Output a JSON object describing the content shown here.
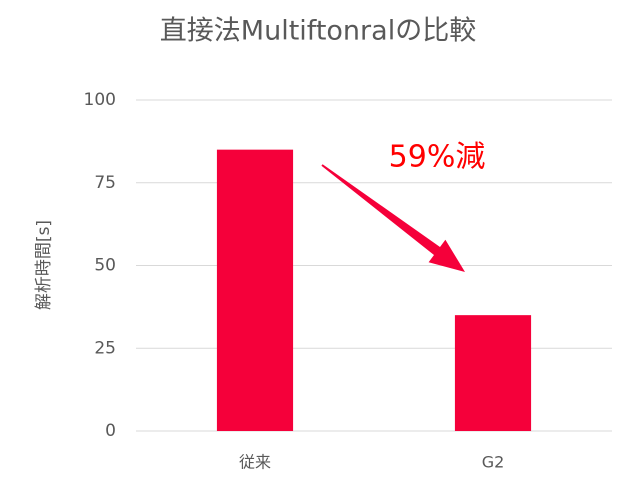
{
  "chart_data": {
    "type": "bar",
    "title": "直接法Multiftonralの比較",
    "y_label": "解析時間[s]",
    "categories": [
      "従来",
      "G2"
    ],
    "values": [
      85,
      35
    ],
    "color": "#f5003a",
    "ylim": [
      0,
      100
    ],
    "yticks": [
      0,
      25,
      50,
      75,
      100
    ],
    "grid": true,
    "annotation": "59%減",
    "annotation_color": "#ff0000"
  }
}
